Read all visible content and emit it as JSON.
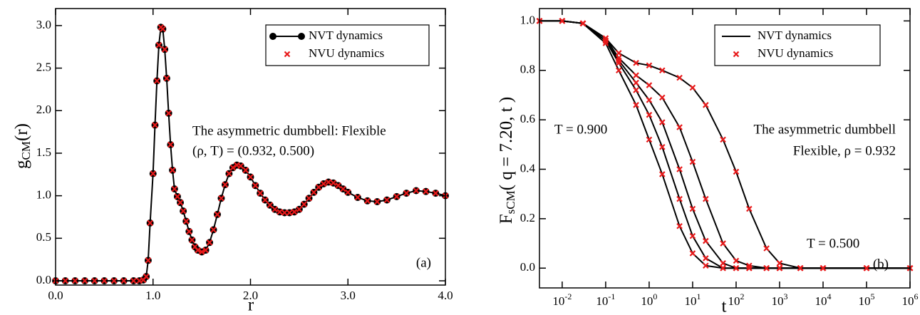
{
  "chart_data": [
    {
      "type": "line",
      "xlabel": "r",
      "ylabel_parts": [
        "g",
        "CM",
        "(r)"
      ],
      "annotations": [
        "The asymmetric dumbbell: Flexible",
        "(ρ, T) = (0.932, 0.500)",
        "(a)"
      ],
      "xlim": [
        0,
        4
      ],
      "ylim": [
        -0.05,
        3.2
      ],
      "xticks": [
        {
          "value": 0,
          "label": "0.0"
        },
        {
          "value": 1,
          "label": "1.0"
        },
        {
          "value": 2,
          "label": "2.0"
        },
        {
          "value": 3,
          "label": "3.0"
        },
        {
          "value": 4,
          "label": "4.0"
        }
      ],
      "yticks": [
        {
          "value": 0,
          "label": "0.0"
        },
        {
          "value": 0.5,
          "label": "0.5"
        },
        {
          "value": 1,
          "label": "1.0"
        },
        {
          "value": 1.5,
          "label": "1.5"
        },
        {
          "value": 2,
          "label": "2.0"
        },
        {
          "value": 2.5,
          "label": "2.5"
        },
        {
          "value": 3,
          "label": "3.0"
        }
      ],
      "x": [
        0,
        0.1,
        0.2,
        0.3,
        0.4,
        0.5,
        0.6,
        0.7,
        0.8,
        0.86,
        0.9,
        0.93,
        0.95,
        0.97,
        1.0,
        1.02,
        1.04,
        1.06,
        1.08,
        1.1,
        1.12,
        1.14,
        1.16,
        1.18,
        1.2,
        1.22,
        1.25,
        1.28,
        1.31,
        1.34,
        1.37,
        1.4,
        1.43,
        1.46,
        1.5,
        1.54,
        1.58,
        1.62,
        1.66,
        1.7,
        1.74,
        1.78,
        1.82,
        1.86,
        1.9,
        1.95,
        2.0,
        2.05,
        2.1,
        2.15,
        2.2,
        2.25,
        2.3,
        2.35,
        2.4,
        2.45,
        2.5,
        2.55,
        2.6,
        2.65,
        2.7,
        2.75,
        2.8,
        2.85,
        2.9,
        2.95,
        3.0,
        3.1,
        3.2,
        3.3,
        3.4,
        3.5,
        3.6,
        3.7,
        3.8,
        3.9,
        4.0
      ],
      "series": [
        {
          "name": "NVT dynamics",
          "color": "#000000",
          "line": true,
          "marker": "circle",
          "values": [
            0,
            0,
            0,
            0,
            0,
            0,
            0,
            0,
            0,
            0,
            0.01,
            0.05,
            0.24,
            0.68,
            1.26,
            1.83,
            2.35,
            2.77,
            2.98,
            2.96,
            2.72,
            2.38,
            1.97,
            1.6,
            1.3,
            1.08,
            0.99,
            0.92,
            0.82,
            0.7,
            0.58,
            0.48,
            0.4,
            0.36,
            0.34,
            0.36,
            0.45,
            0.6,
            0.78,
            0.97,
            1.13,
            1.26,
            1.33,
            1.36,
            1.35,
            1.3,
            1.22,
            1.12,
            1.03,
            0.95,
            0.89,
            0.84,
            0.81,
            0.8,
            0.8,
            0.81,
            0.84,
            0.9,
            0.97,
            1.04,
            1.1,
            1.14,
            1.16,
            1.15,
            1.12,
            1.08,
            1.04,
            0.98,
            0.94,
            0.93,
            0.95,
            0.99,
            1.03,
            1.06,
            1.05,
            1.03,
            1.0
          ]
        },
        {
          "name": "NVU dynamics",
          "color": "#e8191a",
          "line": false,
          "marker": "cross",
          "values": [
            0,
            0,
            0,
            0,
            0,
            0,
            0,
            0,
            0,
            0,
            0.01,
            0.05,
            0.24,
            0.68,
            1.26,
            1.83,
            2.35,
            2.77,
            2.98,
            2.96,
            2.72,
            2.38,
            1.97,
            1.6,
            1.3,
            1.08,
            0.99,
            0.92,
            0.82,
            0.7,
            0.58,
            0.48,
            0.4,
            0.36,
            0.34,
            0.36,
            0.45,
            0.6,
            0.78,
            0.97,
            1.13,
            1.26,
            1.33,
            1.36,
            1.35,
            1.3,
            1.22,
            1.12,
            1.03,
            0.95,
            0.89,
            0.84,
            0.81,
            0.8,
            0.8,
            0.81,
            0.84,
            0.9,
            0.97,
            1.04,
            1.1,
            1.14,
            1.16,
            1.15,
            1.12,
            1.08,
            1.04,
            0.98,
            0.94,
            0.93,
            0.95,
            0.99,
            1.03,
            1.06,
            1.05,
            1.03,
            1.0
          ]
        }
      ]
    },
    {
      "type": "line",
      "xlabel": "t",
      "ylabel_parts": [
        "F",
        "sCM",
        "( q = 7.20, t )"
      ],
      "annotations": [
        "T = 0.900",
        "The asymmetric dumbbell",
        "Flexible, ρ = 0.932",
        "T = 0.500",
        "(b)"
      ],
      "xlog": true,
      "xlim": [
        0.003,
        1000000
      ],
      "ylim": [
        -0.08,
        1.05
      ],
      "xticks": [
        {
          "value": 0.01,
          "label": "10-2"
        },
        {
          "value": 0.1,
          "label": "10-1"
        },
        {
          "value": 1,
          "label": "100"
        },
        {
          "value": 10,
          "label": "101"
        },
        {
          "value": 100,
          "label": "102"
        },
        {
          "value": 1000,
          "label": "103"
        },
        {
          "value": 10000,
          "label": "104"
        },
        {
          "value": 100000,
          "label": "105"
        },
        {
          "value": 1000000,
          "label": "106"
        }
      ],
      "yticks": [
        {
          "value": 0,
          "label": "0.0"
        },
        {
          "value": 0.2,
          "label": "0.2"
        },
        {
          "value": 0.4,
          "label": "0.4"
        },
        {
          "value": 0.6,
          "label": "0.6"
        },
        {
          "value": 0.8,
          "label": "0.8"
        },
        {
          "value": 1,
          "label": "1.0"
        }
      ],
      "x": [
        0.003,
        0.01,
        0.03,
        0.1,
        0.2,
        0.5,
        1,
        2,
        5,
        10,
        20,
        50,
        100,
        200,
        500,
        1000,
        3000,
        10000,
        100000,
        1000000
      ],
      "series": [
        {
          "name": "NVT dynamics",
          "color": "#000000",
          "line": true,
          "marker": "none",
          "values": [
            1.0,
            1.0,
            0.99,
            0.91,
            0.8,
            0.66,
            0.52,
            0.38,
            0.17,
            0.06,
            0.01,
            0,
            0,
            0,
            0,
            0,
            0,
            0,
            0,
            0
          ]
        },
        {
          "color": "#000000",
          "line": true,
          "marker": "none",
          "values": [
            1.0,
            1.0,
            0.99,
            0.92,
            0.83,
            0.72,
            0.62,
            0.49,
            0.28,
            0.13,
            0.04,
            0,
            0,
            0,
            0,
            0,
            0,
            0,
            0,
            0
          ]
        },
        {
          "color": "#000000",
          "line": true,
          "marker": "none",
          "values": [
            1.0,
            1.0,
            0.99,
            0.92,
            0.84,
            0.75,
            0.68,
            0.59,
            0.4,
            0.24,
            0.11,
            0.02,
            0,
            0,
            0,
            0,
            0,
            0,
            0,
            0
          ]
        },
        {
          "color": "#000000",
          "line": true,
          "marker": "none",
          "values": [
            1.0,
            1.0,
            0.99,
            0.93,
            0.85,
            0.78,
            0.74,
            0.69,
            0.57,
            0.43,
            0.28,
            0.1,
            0.03,
            0.01,
            0,
            0,
            0,
            0,
            0,
            0
          ]
        },
        {
          "color": "#000000",
          "line": true,
          "marker": "none",
          "values": [
            1.0,
            1.0,
            0.99,
            0.93,
            0.87,
            0.83,
            0.82,
            0.8,
            0.77,
            0.73,
            0.66,
            0.52,
            0.39,
            0.24,
            0.08,
            0.02,
            0,
            0,
            0,
            0
          ]
        },
        {
          "name": "NVU dynamics",
          "color": "#e8191a",
          "line": false,
          "marker": "cross",
          "values": [
            1.0,
            1.0,
            0.99,
            0.91,
            0.8,
            0.66,
            0.52,
            0.38,
            0.17,
            0.06,
            0.01,
            0,
            0,
            0,
            0,
            0,
            0,
            0,
            0,
            0
          ]
        },
        {
          "color": "#e8191a",
          "line": false,
          "marker": "cross",
          "values": [
            1.0,
            1.0,
            0.99,
            0.92,
            0.83,
            0.72,
            0.62,
            0.49,
            0.28,
            0.13,
            0.04,
            0,
            0,
            0,
            0,
            0,
            0,
            0,
            0,
            0
          ]
        },
        {
          "color": "#e8191a",
          "line": false,
          "marker": "cross",
          "values": [
            1.0,
            1.0,
            0.99,
            0.92,
            0.84,
            0.75,
            0.68,
            0.59,
            0.4,
            0.24,
            0.11,
            0.02,
            0,
            0,
            0,
            0,
            0,
            0,
            0,
            0
          ]
        },
        {
          "color": "#e8191a",
          "line": false,
          "marker": "cross",
          "values": [
            1.0,
            1.0,
            0.99,
            0.93,
            0.85,
            0.78,
            0.74,
            0.69,
            0.57,
            0.43,
            0.28,
            0.1,
            0.03,
            0.01,
            0,
            0,
            0,
            0,
            0,
            0
          ]
        },
        {
          "color": "#e8191a",
          "line": false,
          "marker": "cross",
          "values": [
            1.0,
            1.0,
            0.99,
            0.93,
            0.87,
            0.83,
            0.82,
            0.8,
            0.77,
            0.73,
            0.66,
            0.52,
            0.39,
            0.24,
            0.08,
            0.02,
            0,
            0,
            0,
            0
          ]
        }
      ]
    }
  ]
}
